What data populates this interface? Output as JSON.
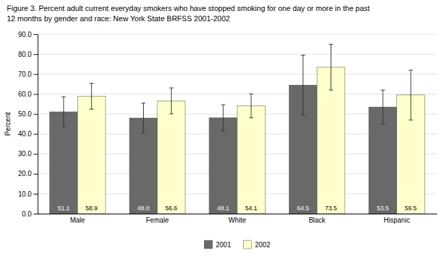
{
  "chart_data": {
    "type": "bar",
    "title": "Figure 3. Percent adult current everyday smokers who have stopped smoking for one day or more in the past",
    "subtitle": "12 months by gender and race: New York State BRFSS 2001-2002",
    "categories": [
      "Male",
      "Female",
      "White",
      "Black",
      "Hispanic"
    ],
    "series": [
      {
        "name": "2001",
        "color": "#696969",
        "values": [
          51.1,
          48.0,
          48.1,
          64.5,
          53.5
        ],
        "value_labels": [
          "51.1",
          "48.0",
          "48.1",
          "64.5",
          "53.5"
        ],
        "errors": [
          7.5,
          7.5,
          6.5,
          15.0,
          8.5
        ]
      },
      {
        "name": "2002",
        "color": "#FFFFCC",
        "values": [
          58.9,
          56.6,
          54.1,
          73.5,
          59.5
        ],
        "value_labels": [
          "58.9",
          "56.6",
          "54.1",
          "73.5",
          "59.5"
        ],
        "errors": [
          6.5,
          6.5,
          6.0,
          11.5,
          12.5
        ]
      }
    ],
    "y_label": "Percent",
    "ylim": [
      0,
      90
    ],
    "yticks": [
      {
        "value": 0,
        "label": "0.0"
      },
      {
        "value": 10,
        "label": "10.0"
      },
      {
        "value": 20,
        "label": "20.0"
      },
      {
        "value": 30,
        "label": "30.0"
      },
      {
        "value": 40,
        "label": "40.0"
      },
      {
        "value": 50,
        "label": "50.0"
      },
      {
        "value": 60,
        "label": "60.0"
      },
      {
        "value": 70,
        "label": "70.0"
      },
      {
        "value": 80,
        "label": "80.0"
      },
      {
        "value": 90,
        "label": "90.0"
      }
    ],
    "grid": true,
    "legend": "bottom",
    "data_labels": true
  }
}
